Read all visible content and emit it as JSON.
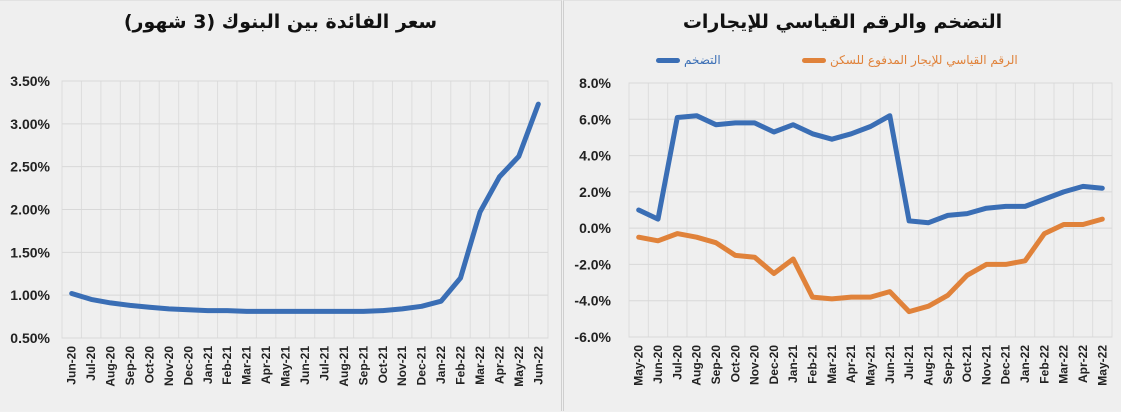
{
  "chart_data": [
    {
      "type": "line",
      "title": "سعر الفائدة بين البنوك (3 شهور)",
      "xlabel": "",
      "ylabel": "",
      "ylim": [
        0.005,
        0.035
      ],
      "yticks": [
        "0.50%",
        "1.00%",
        "1.50%",
        "2.00%",
        "2.50%",
        "3.00%",
        "3.50%"
      ],
      "grid": true,
      "legend": "none",
      "categories": [
        "Jun-20",
        "Jul-20",
        "Aug-20",
        "Sep-20",
        "Oct-20",
        "Nov-20",
        "Dec-20",
        "Jan-21",
        "Feb-21",
        "Mar-21",
        "Apr-21",
        "May-21",
        "Jun-21",
        "Jul-21",
        "Aug-21",
        "Sep-21",
        "Oct-21",
        "Nov-21",
        "Dec-21",
        "Jan-22",
        "Feb-22",
        "Mar-22",
        "Apr-22",
        "May-22",
        "Jun-22"
      ],
      "series": [
        {
          "name": "سعر الفائدة بين البنوك",
          "color": "#3a6eb5",
          "values": [
            1.02,
            0.95,
            0.91,
            0.88,
            0.86,
            0.84,
            0.83,
            0.82,
            0.82,
            0.81,
            0.81,
            0.81,
            0.81,
            0.81,
            0.81,
            0.81,
            0.82,
            0.84,
            0.87,
            0.93,
            1.2,
            1.97,
            2.38,
            2.62,
            3.23
          ]
        }
      ]
    },
    {
      "type": "line",
      "title": "التضخم والرقم القياسي للإيجارات",
      "xlabel": "",
      "ylabel": "",
      "ylim": [
        -6,
        8
      ],
      "yticks": [
        "-6.0%",
        "-4.0%",
        "-2.0%",
        "0.0%",
        "2.0%",
        "4.0%",
        "6.0%",
        "8.0%"
      ],
      "grid": true,
      "legend": "top",
      "categories": [
        "May-20",
        "Jun-20",
        "Jul-20",
        "Aug-20",
        "Sep-20",
        "Oct-20",
        "Nov-20",
        "Dec-20",
        "Jan-21",
        "Feb-21",
        "Mar-21",
        "Apr-21",
        "May-21",
        "Jun-21",
        "Jul-21",
        "Aug-21",
        "Sep-21",
        "Oct-21",
        "Nov-21",
        "Dec-21",
        "Jan-22",
        "Feb-22",
        "Mar-22",
        "Apr-22",
        "May-22"
      ],
      "series": [
        {
          "name": "التضخم",
          "color": "#3a6eb5",
          "values": [
            1.0,
            0.5,
            6.1,
            6.2,
            5.7,
            5.8,
            5.8,
            5.3,
            5.7,
            5.2,
            4.9,
            5.2,
            5.6,
            6.2,
            0.4,
            0.3,
            0.7,
            0.8,
            1.1,
            1.2,
            1.2,
            1.6,
            2.0,
            2.3,
            2.2
          ]
        },
        {
          "name": "الرقم القياسي للإيجار المدفوع للسكن",
          "color": "#e0823a",
          "values": [
            -0.5,
            -0.7,
            -0.3,
            -0.5,
            -0.8,
            -1.5,
            -1.6,
            -2.5,
            -1.7,
            -3.8,
            -3.9,
            -3.8,
            -3.8,
            -3.5,
            -4.6,
            -4.3,
            -3.7,
            -2.6,
            -2.0,
            -2.0,
            -1.8,
            -0.3,
            0.2,
            0.2,
            0.5
          ]
        }
      ]
    }
  ],
  "left": {
    "title": "سعر الفائدة بين البنوك (3 شهور)"
  },
  "right": {
    "title": "التضخم والرقم القياسي للإيجارات",
    "legend": {
      "inflation": "التضخم",
      "rent_index": "الرقم القياسي للإيجار المدفوع للسكن"
    }
  }
}
